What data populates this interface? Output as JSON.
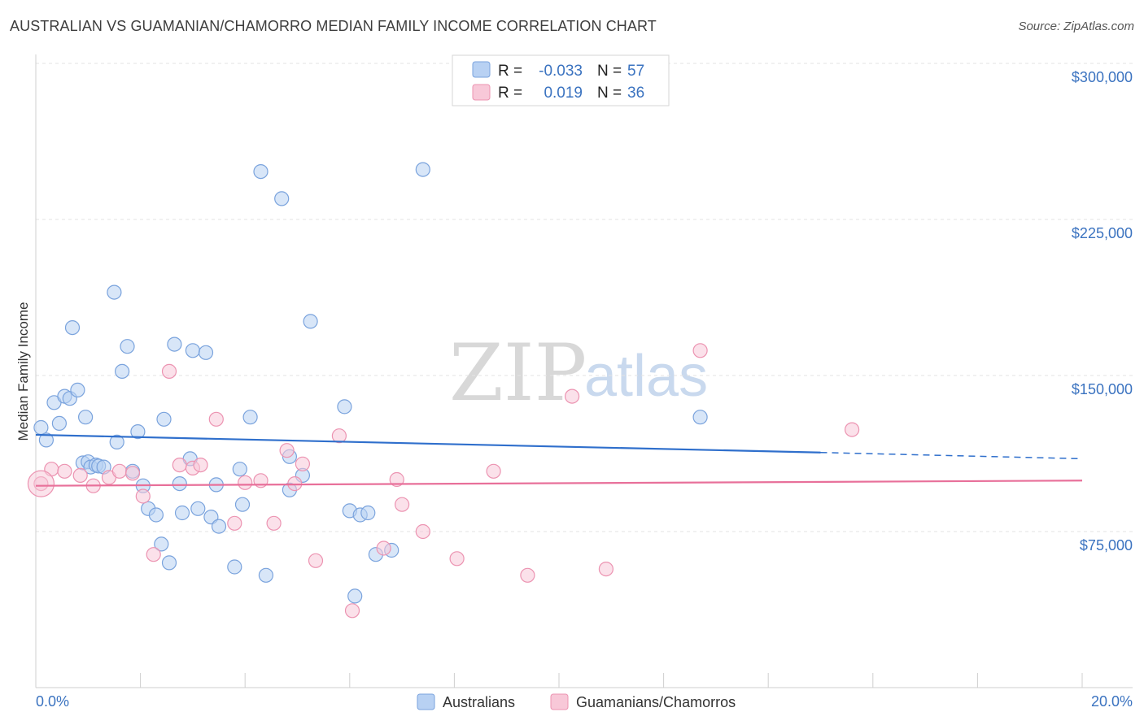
{
  "header": {
    "title": "AUSTRALIAN VS GUAMANIAN/CHAMORRO MEDIAN FAMILY INCOME CORRELATION CHART",
    "source": "Source: ZipAtlas.com"
  },
  "watermark": {
    "zip": "ZIP",
    "atlas": "atlas"
  },
  "colors": {
    "blue_fill": "#b8d1f3",
    "blue_stroke": "#7aa3dd",
    "blue_line": "#2f6fcc",
    "pink_fill": "#f8c8d8",
    "pink_stroke": "#ec93b1",
    "pink_line": "#e8709a",
    "grid": "#e3e3e3",
    "tick_text": "#3b73c0"
  },
  "legend": {
    "rows": [
      {
        "r_label": "R =",
        "r_value": "-0.033",
        "n_label": "N =",
        "n_value": "57"
      },
      {
        "r_label": "R =",
        "r_value": "0.019",
        "n_label": "N =",
        "n_value": "36"
      }
    ]
  },
  "chart_data": {
    "type": "scatter",
    "title": "AUSTRALIAN VS GUAMANIAN/CHAMORRO MEDIAN FAMILY INCOME CORRELATION CHART",
    "xlabel": "",
    "ylabel": "Median Family Income",
    "xlim": [
      0,
      20
    ],
    "ylim": [
      0,
      312500
    ],
    "x_tick_labels": [
      "0.0%",
      "20.0%"
    ],
    "y_ticks": [
      75000,
      150000,
      225000,
      300000
    ],
    "y_tick_labels": [
      "$75,000",
      "$150,000",
      "$225,000",
      "$300,000"
    ],
    "legend_position": "top-center",
    "series": [
      {
        "name": "Australians",
        "color": "blue",
        "r": -0.033,
        "n": 57,
        "trend": {
          "x_start": 0,
          "y_start": 121500,
          "x_solid_end": 15.0,
          "y_solid_end": 113000,
          "x_end": 20,
          "y_end": 110000
        },
        "points": [
          [
            0.1,
            125000
          ],
          [
            0.2,
            119000
          ],
          [
            0.35,
            137000
          ],
          [
            0.45,
            127000
          ],
          [
            0.55,
            140000
          ],
          [
            0.65,
            139000
          ],
          [
            0.7,
            173000
          ],
          [
            0.8,
            143000
          ],
          [
            0.9,
            108000
          ],
          [
            0.95,
            130000
          ],
          [
            1.0,
            108500
          ],
          [
            1.05,
            106000
          ],
          [
            1.15,
            107000
          ],
          [
            1.2,
            106500
          ],
          [
            1.3,
            106000
          ],
          [
            1.5,
            190000
          ],
          [
            1.55,
            118000
          ],
          [
            1.65,
            152000
          ],
          [
            1.75,
            164000
          ],
          [
            1.85,
            104000
          ],
          [
            1.95,
            123000
          ],
          [
            2.05,
            97000
          ],
          [
            2.15,
            86000
          ],
          [
            2.3,
            83000
          ],
          [
            2.4,
            69000
          ],
          [
            2.45,
            129000
          ],
          [
            2.55,
            60000
          ],
          [
            2.65,
            165000
          ],
          [
            2.75,
            98000
          ],
          [
            2.8,
            84000
          ],
          [
            2.95,
            110000
          ],
          [
            3.0,
            162000
          ],
          [
            3.1,
            86000
          ],
          [
            3.25,
            161000
          ],
          [
            3.35,
            82000
          ],
          [
            3.45,
            97500
          ],
          [
            3.5,
            77500
          ],
          [
            3.8,
            58000
          ],
          [
            3.9,
            105000
          ],
          [
            3.95,
            88000
          ],
          [
            4.1,
            130000
          ],
          [
            4.3,
            248000
          ],
          [
            4.4,
            54000
          ],
          [
            4.7,
            235000
          ],
          [
            4.85,
            111000
          ],
          [
            4.85,
            95000
          ],
          [
            5.1,
            102000
          ],
          [
            5.25,
            176000
          ],
          [
            5.9,
            135000
          ],
          [
            6.0,
            85000
          ],
          [
            6.1,
            44000
          ],
          [
            6.2,
            83000
          ],
          [
            6.35,
            84000
          ],
          [
            6.5,
            64000
          ],
          [
            6.8,
            66000
          ],
          [
            7.4,
            249000
          ],
          [
            12.7,
            130000
          ]
        ]
      },
      {
        "name": "Guamanians/Chamorros",
        "color": "pink",
        "r": 0.019,
        "n": 36,
        "trend": {
          "x_start": 0,
          "y_start": 97000,
          "x_end": 20,
          "y_end": 99500
        },
        "points": [
          [
            0.1,
            98000
          ],
          [
            0.3,
            105000
          ],
          [
            0.55,
            104000
          ],
          [
            0.85,
            102000
          ],
          [
            1.1,
            97000
          ],
          [
            1.4,
            101000
          ],
          [
            1.6,
            104000
          ],
          [
            1.85,
            103000
          ],
          [
            2.05,
            92000
          ],
          [
            2.25,
            64000
          ],
          [
            2.55,
            152000
          ],
          [
            2.75,
            107000
          ],
          [
            3.0,
            105500
          ],
          [
            3.15,
            107000
          ],
          [
            3.45,
            129000
          ],
          [
            3.8,
            79000
          ],
          [
            4.0,
            98500
          ],
          [
            4.3,
            99500
          ],
          [
            4.55,
            79000
          ],
          [
            4.8,
            114000
          ],
          [
            4.95,
            98000
          ],
          [
            5.1,
            107500
          ],
          [
            5.35,
            61000
          ],
          [
            5.8,
            121000
          ],
          [
            6.05,
            37000
          ],
          [
            6.65,
            67000
          ],
          [
            6.9,
            100000
          ],
          [
            7.0,
            88000
          ],
          [
            7.4,
            75000
          ],
          [
            8.05,
            62000
          ],
          [
            8.75,
            104000
          ],
          [
            9.4,
            54000
          ],
          [
            10.25,
            140000
          ],
          [
            10.9,
            57000
          ],
          [
            12.7,
            162000
          ],
          [
            15.6,
            124000
          ]
        ]
      }
    ]
  }
}
